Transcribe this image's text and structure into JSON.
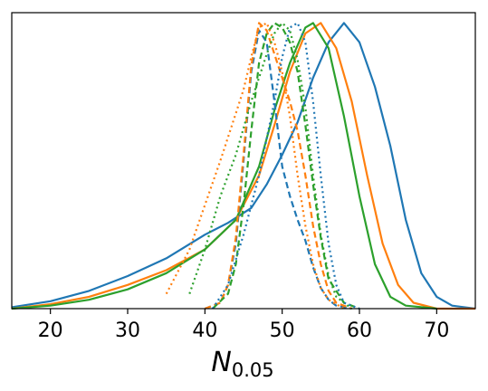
{
  "chart_data": {
    "type": "line",
    "xlabel_main": "N",
    "xlabel_sub": "0.05",
    "ylabel": "",
    "xlim": [
      15,
      75
    ],
    "ylim": [
      0,
      1.0
    ],
    "x_ticks": [
      20,
      30,
      40,
      50,
      60,
      70
    ],
    "y_ticks_visible": false,
    "grid": false,
    "legend": "none",
    "colors": {
      "blue": "#1f77b4",
      "orange": "#ff7f0e",
      "green": "#2ca02c"
    },
    "series": [
      {
        "color": "#1f77b4",
        "dash": "solid",
        "x": [
          15,
          20,
          25,
          30,
          35,
          40,
          43,
          46,
          48,
          50,
          52,
          54,
          56,
          58,
          60,
          62,
          64,
          66,
          68,
          70,
          72,
          75
        ],
        "y": [
          0.005,
          0.025,
          0.06,
          0.11,
          0.17,
          0.25,
          0.29,
          0.34,
          0.42,
          0.52,
          0.63,
          0.78,
          0.9,
          0.965,
          0.9,
          0.75,
          0.55,
          0.3,
          0.12,
          0.04,
          0.01,
          0.0
        ]
      },
      {
        "color": "#ff7f0e",
        "dash": "solid",
        "x": [
          15,
          20,
          25,
          30,
          35,
          40,
          44,
          47,
          49,
          51,
          53,
          55,
          57,
          59,
          61,
          63,
          65,
          67,
          70,
          75
        ],
        "y": [
          0.0,
          0.015,
          0.04,
          0.08,
          0.13,
          0.2,
          0.3,
          0.45,
          0.62,
          0.8,
          0.93,
          0.965,
          0.88,
          0.7,
          0.45,
          0.22,
          0.08,
          0.02,
          0.0,
          0.0
        ]
      },
      {
        "color": "#2ca02c",
        "dash": "solid",
        "x": [
          15,
          20,
          25,
          30,
          35,
          40,
          44,
          47,
          49,
          51,
          53,
          54,
          56,
          58,
          60,
          62,
          64,
          66,
          70
        ],
        "y": [
          0.0,
          0.01,
          0.03,
          0.065,
          0.12,
          0.2,
          0.3,
          0.48,
          0.67,
          0.83,
          0.95,
          0.965,
          0.88,
          0.65,
          0.38,
          0.15,
          0.04,
          0.01,
          0.0
        ]
      },
      {
        "color": "#1f77b4",
        "dash": "dashed",
        "x": [
          40,
          42,
          43,
          44,
          45,
          46,
          47,
          48,
          49,
          50,
          51,
          52,
          53,
          54,
          55,
          56,
          57,
          59
        ],
        "y": [
          0.0,
          0.02,
          0.08,
          0.22,
          0.5,
          0.8,
          0.94,
          0.9,
          0.7,
          0.48,
          0.38,
          0.3,
          0.23,
          0.14,
          0.07,
          0.03,
          0.01,
          0.0
        ]
      },
      {
        "color": "#ff7f0e",
        "dash": "dashed",
        "x": [
          40,
          42,
          43,
          44,
          45,
          46,
          47,
          48,
          49,
          50,
          51,
          52,
          53,
          54,
          55,
          56,
          57,
          59
        ],
        "y": [
          0.0,
          0.02,
          0.08,
          0.24,
          0.52,
          0.82,
          0.965,
          0.94,
          0.86,
          0.78,
          0.7,
          0.6,
          0.45,
          0.28,
          0.15,
          0.06,
          0.02,
          0.0
        ]
      },
      {
        "color": "#2ca02c",
        "dash": "dashed",
        "x": [
          41,
          43,
          44,
          45,
          46,
          47,
          48,
          49,
          50,
          51,
          52,
          53,
          54,
          55,
          56,
          58,
          60
        ],
        "y": [
          0.0,
          0.05,
          0.15,
          0.35,
          0.6,
          0.83,
          0.93,
          0.965,
          0.95,
          0.9,
          0.8,
          0.62,
          0.42,
          0.24,
          0.1,
          0.02,
          0.0
        ]
      },
      {
        "color": "#ff7f0e",
        "dash": "dotted",
        "x": [
          35,
          38,
          40,
          42,
          44,
          45,
          46,
          47,
          48,
          49,
          50,
          51,
          52,
          53,
          54,
          55,
          56,
          58
        ],
        "y": [
          0.05,
          0.2,
          0.35,
          0.5,
          0.66,
          0.74,
          0.85,
          0.95,
          0.965,
          0.9,
          0.8,
          0.65,
          0.45,
          0.28,
          0.15,
          0.07,
          0.03,
          0.0
        ]
      },
      {
        "color": "#2ca02c",
        "dash": "dotted",
        "x": [
          38,
          40,
          42,
          44,
          46,
          48,
          49,
          50,
          51,
          52,
          53,
          54,
          55,
          56,
          57,
          59
        ],
        "y": [
          0.05,
          0.2,
          0.38,
          0.52,
          0.7,
          0.86,
          0.93,
          0.965,
          0.94,
          0.84,
          0.68,
          0.45,
          0.25,
          0.11,
          0.04,
          0.0
        ]
      },
      {
        "color": "#1f77b4",
        "dash": "dotted",
        "x": [
          41,
          43,
          45,
          47,
          49,
          50,
          51,
          52,
          53,
          54,
          55,
          56,
          57,
          58,
          60
        ],
        "y": [
          0.0,
          0.08,
          0.25,
          0.45,
          0.7,
          0.85,
          0.95,
          0.965,
          0.9,
          0.7,
          0.45,
          0.22,
          0.08,
          0.02,
          0.0
        ]
      }
    ]
  }
}
